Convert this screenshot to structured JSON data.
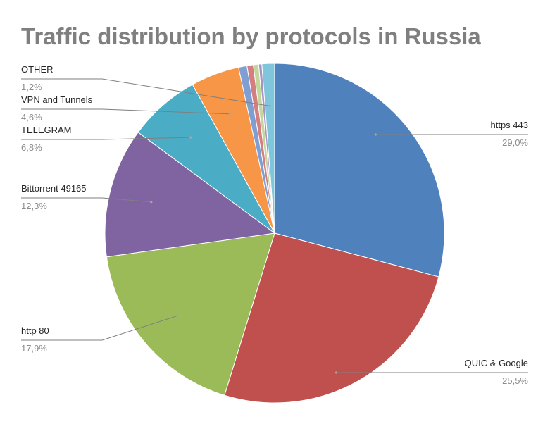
{
  "chart_data": {
    "type": "pie",
    "title": "Traffic distribution by protocols in Russia",
    "slices": [
      {
        "name": "https 443",
        "value": 29.0,
        "label": "29,0%",
        "color": "#4f81bd"
      },
      {
        "name": "QUIC & Google",
        "value": 25.5,
        "label": "25,5%",
        "color": "#c0504d"
      },
      {
        "name": "http 80",
        "value": 17.9,
        "label": "17,9%",
        "color": "#9bbb59"
      },
      {
        "name": "Bittorrent 49165",
        "value": 12.3,
        "label": "12,3%",
        "color": "#8064a2"
      },
      {
        "name": "TELEGRAM",
        "value": 6.8,
        "label": "6,8%",
        "color": "#4bacc6"
      },
      {
        "name": "VPN and Tunnels",
        "value": 4.6,
        "label": "4,6%",
        "color": "#f79646"
      },
      {
        "name": "",
        "value": 0.8,
        "label": "",
        "color": "#7f9fd4"
      },
      {
        "name": "",
        "value": 0.6,
        "label": "",
        "color": "#d47f7f"
      },
      {
        "name": "",
        "value": 0.5,
        "label": "",
        "color": "#c3d69b"
      },
      {
        "name": "",
        "value": 0.3,
        "label": "",
        "color": "#a794c4"
      },
      {
        "name": "OTHER",
        "value": 1.2,
        "label": "1,2%",
        "color": "#7fc6dc"
      }
    ]
  }
}
